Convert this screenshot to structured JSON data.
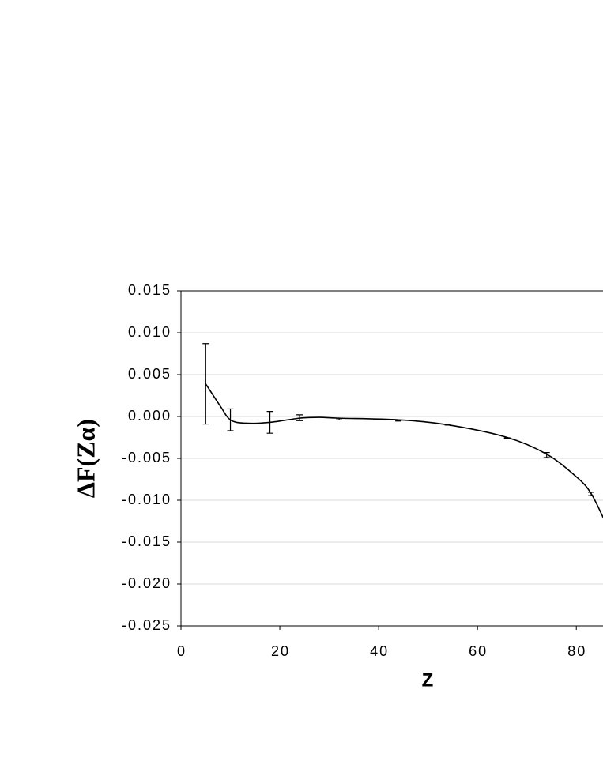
{
  "chart_data": {
    "type": "line",
    "x_label": "Z",
    "y_label": "ΔF(Zα)",
    "xlim": [
      0,
      85.4
    ],
    "ylim": [
      -0.025,
      0.015
    ],
    "xticks": [
      0,
      20,
      40,
      60,
      80
    ],
    "yticks": [
      {
        "value": 0.015,
        "label": "0.015"
      },
      {
        "value": 0.01,
        "label": "0.010"
      },
      {
        "value": 0.005,
        "label": "0.005"
      },
      {
        "value": 0,
        "label": "0.000"
      },
      {
        "value": -0.005,
        "label": "-0.005"
      },
      {
        "value": -0.01,
        "label": "-0.010"
      },
      {
        "value": -0.015,
        "label": "-0.015"
      },
      {
        "value": -0.02,
        "label": "-0.020"
      },
      {
        "value": -0.025,
        "label": "-0.025"
      }
    ],
    "grid": true,
    "series": [
      {
        "kind": "errorbar",
        "color": "#000000",
        "x": [
          5,
          10,
          18,
          24,
          32,
          44,
          54,
          66,
          74,
          83
        ],
        "values": [
          0.0039,
          -0.0004,
          -0.0007,
          -0.00015,
          -0.0003,
          -0.0005,
          -0.001,
          -0.0026,
          -0.0046,
          -0.00925
        ],
        "errors": [
          0.0048,
          0.0013,
          0.0013,
          0.00035,
          0.0001,
          5e-05,
          3e-05,
          5e-05,
          0.0003,
          0.0002
        ]
      },
      {
        "kind": "fit",
        "color": "#000000",
        "x": [
          5,
          8,
          10,
          13,
          18,
          24,
          28,
          32,
          44,
          54,
          66,
          74,
          80,
          83,
          86
        ],
        "values": [
          0.0039,
          0.0012,
          -0.0004,
          -0.0008,
          -0.0007,
          -0.0002,
          -0.0001,
          -0.0002,
          -0.0004,
          -0.001,
          -0.0025,
          -0.0045,
          -0.0072,
          -0.0092,
          -0.0128
        ]
      }
    ]
  }
}
